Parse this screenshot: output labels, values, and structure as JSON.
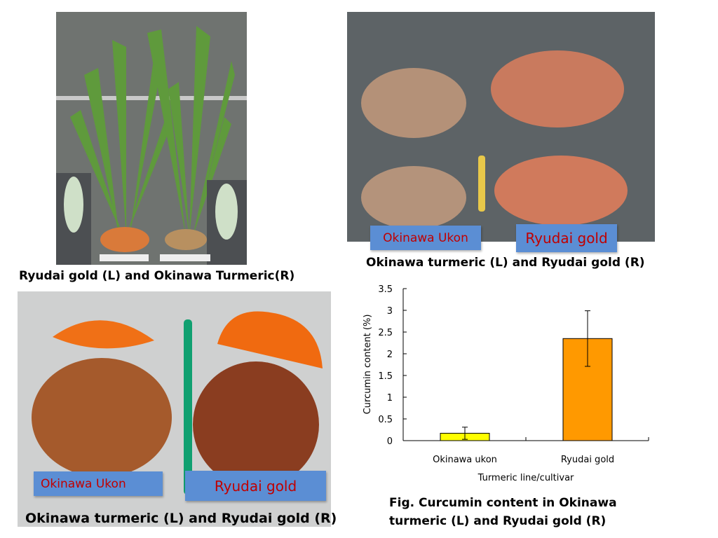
{
  "captions": {
    "top_left": "Ryudai gold (L) and Okinawa Turmeric(R)",
    "top_right": "Okinawa turmeric (L) and Ryudai gold (R)",
    "bottom_left": "Okinawa turmeric (L) and Ryudai gold (R)",
    "figure": "Fig.  Curcumin content in Okinawa turmeric (L) and Ryudai gold (R)"
  },
  "tags": {
    "top_okinawa": "Okinawa Ukon",
    "top_ryudai": "Ryudai gold",
    "bottom_okinawa": "Okinawa Ukon",
    "bottom_ryudai": "Ryudai gold"
  },
  "chart_data": {
    "type": "bar",
    "categories": [
      "Okinawa ukon",
      "Ryudai gold"
    ],
    "values": [
      0.17,
      2.35
    ],
    "errors": [
      0.14,
      0.64
    ],
    "colors": [
      "#ffff00",
      "#ff9900"
    ],
    "xlabel": "Turmeric line/cultivar",
    "ylabel": "Curcumin content (%)",
    "ylim": [
      0,
      3.5
    ],
    "yticks": [
      "0",
      "0.5",
      "1",
      "1.5",
      "2",
      "2.5",
      "3",
      "3.5"
    ],
    "grid": false
  }
}
